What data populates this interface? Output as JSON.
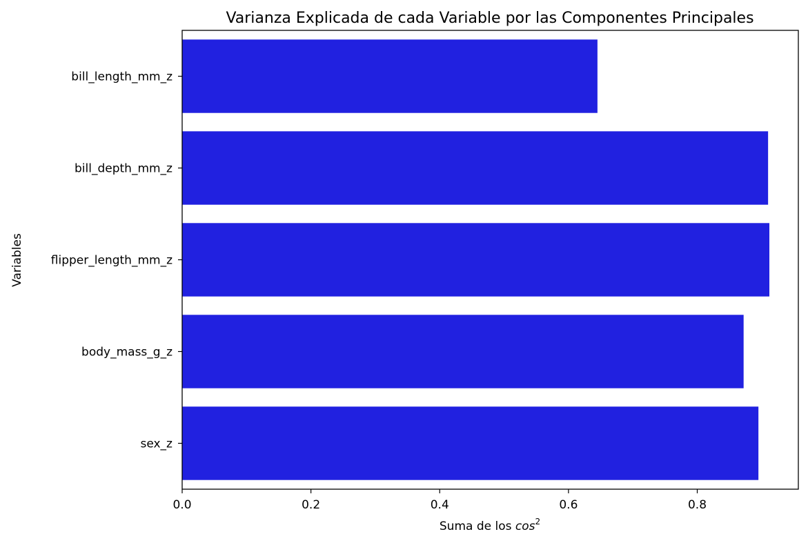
{
  "chart_data": {
    "type": "bar",
    "orientation": "horizontal",
    "title": "Varianza Explicada de cada Variable por las Componentes Principales",
    "xlabel": "Suma de los cos²",
    "xlabel_base": "Suma de los ",
    "xlabel_math": "cos",
    "xlabel_sup": "2",
    "ylabel": "Variables",
    "categories": [
      "bill_length_mm_z",
      "bill_depth_mm_z",
      "flipper_length_mm_z",
      "body_mass_g_z",
      "sex_z"
    ],
    "values": [
      0.645,
      0.91,
      0.912,
      0.872,
      0.895
    ],
    "xlim": [
      0,
      0.957
    ],
    "xticks": [
      "0.0",
      "0.2",
      "0.4",
      "0.6",
      "0.8"
    ],
    "xtick_values": [
      0.0,
      0.2,
      0.4,
      0.6,
      0.8
    ],
    "bar_color": "#2121e0",
    "grid": false,
    "legend": "none"
  }
}
